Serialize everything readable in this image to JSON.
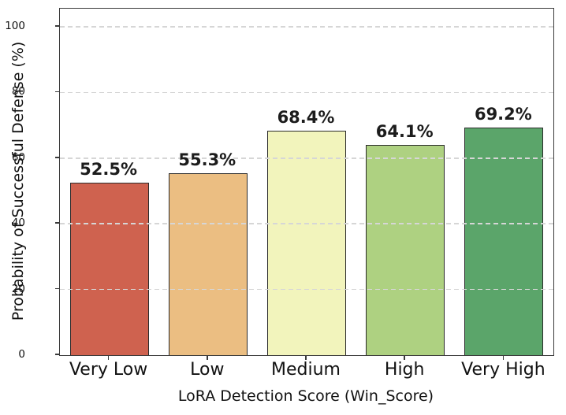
{
  "chart_data": {
    "type": "bar",
    "title": "",
    "xlabel": "LoRA Detection Score (Win_Score)",
    "ylabel": "Probability of Successful Defense (%)",
    "categories": [
      "Very Low",
      "Low",
      "Medium",
      "High",
      "Very High"
    ],
    "values": [
      52.5,
      55.3,
      68.4,
      64.1,
      69.2
    ],
    "value_labels": [
      "52.5%",
      "55.3%",
      "68.4%",
      "64.1%",
      "69.2%"
    ],
    "bar_colors": [
      "#cf624f",
      "#ebbe82",
      "#f2f4bc",
      "#aed181",
      "#5ba56a"
    ],
    "bar_edge_color": "#2b2b2b",
    "yticks": [
      0,
      20,
      40,
      60,
      80,
      100
    ],
    "ytick_labels": [
      "0",
      "20",
      "40",
      "60",
      "80",
      "100"
    ],
    "ylim": [
      0,
      105.5
    ],
    "grid": {
      "show": true,
      "axis": "y",
      "style": "dashed",
      "color": "#d6d6d6",
      "over_bars": true
    },
    "legend": null,
    "value_label_color": "#1c1c1c",
    "axis_text_color": "#111111"
  }
}
